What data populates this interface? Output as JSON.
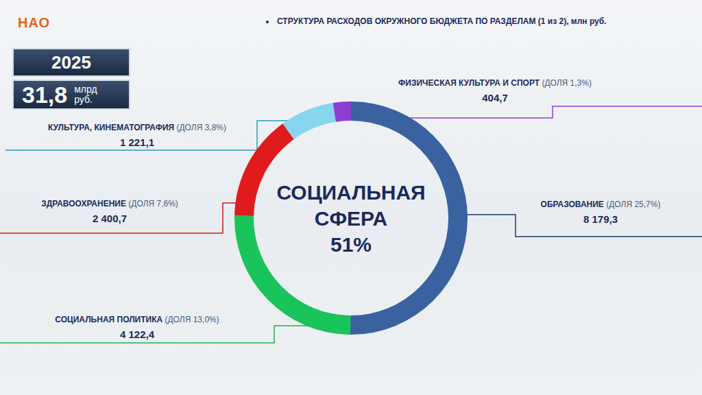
{
  "header": {
    "logo": "НАО",
    "year": "2025",
    "total": "31,8",
    "total_unit": "млрд руб."
  },
  "chart_data": {
    "type": "pie",
    "title": "СТРУКТУРА РАСХОДОВ ОКРУЖНОГО БЮДЖЕТА ПО РАЗДЕЛАМ (1 из 2), млн руб.",
    "categories": [
      "ОБРАЗОВАНИЕ",
      "СОЦИАЛЬНАЯ ПОЛИТИКА",
      "ЗДРАВООХРАНЕНИЕ",
      "КУЛЬТУРА, КИНЕМАТОГРАФИЯ",
      "ФИЗИЧЕСКАЯ КУЛЬТУРА И СПОРТ"
    ],
    "values": [
      8179.3,
      4122.4,
      2400.7,
      1221.1,
      404.7
    ],
    "value_labels": [
      "8 179,3",
      "4 122,4",
      "2 400,7",
      "1 221,1",
      "404,7"
    ],
    "share_labels": [
      "(ДОЛЯ 25,7%)",
      "(ДОЛЯ 13,0%)",
      "(ДОЛЯ 7,6%)",
      "(ДОЛЯ 3,8%)",
      "(ДОЛЯ 1,3%)"
    ],
    "colors": [
      "#3a62a0",
      "#19c45a",
      "#e01b1b",
      "#86d6ef",
      "#8a3fd1"
    ],
    "center_label": "СОЦИАЛЬНАЯ СФЕРА",
    "center_value_label": "51%",
    "data_labels": true
  }
}
